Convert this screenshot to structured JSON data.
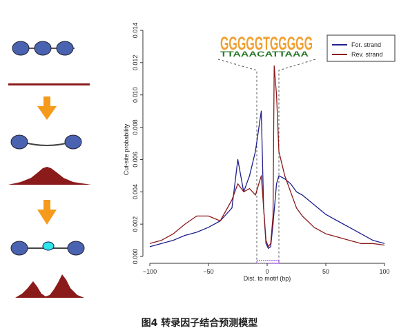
{
  "caption": "图4 转录因子结合预测模型",
  "chart_data": {
    "type": "line",
    "xlabel": "Dist. to motif (bp)",
    "ylabel": "Cut-site probability",
    "xlim": [
      -100,
      100
    ],
    "ylim": [
      0,
      0.014
    ],
    "x_ticks": [
      -100,
      -50,
      0,
      50,
      100
    ],
    "y_ticks": [
      0.0,
      0.002,
      0.004,
      0.006,
      0.008,
      0.01,
      0.012,
      0.014
    ],
    "grid": false,
    "legend_position": "top-right",
    "motif_logo": "GGGGGTGGGGG",
    "motif_logo_lower": "TTAAACATTAAA",
    "series": [
      {
        "name": "For. strand",
        "color": "#1f1f8f",
        "x": [
          -100,
          -90,
          -80,
          -70,
          -60,
          -50,
          -40,
          -30,
          -25,
          -20,
          -15,
          -10,
          -5,
          -3,
          -1,
          1,
          3,
          5,
          8,
          10,
          15,
          20,
          25,
          30,
          40,
          50,
          60,
          70,
          80,
          90,
          100
        ],
        "y": [
          0.0006,
          0.0008,
          0.001,
          0.0013,
          0.0015,
          0.0018,
          0.0022,
          0.003,
          0.006,
          0.004,
          0.005,
          0.0065,
          0.009,
          0.003,
          0.0008,
          0.0005,
          0.0006,
          0.002,
          0.0045,
          0.005,
          0.0048,
          0.0045,
          0.004,
          0.0038,
          0.0032,
          0.0026,
          0.0022,
          0.0018,
          0.0014,
          0.001,
          0.0008
        ]
      },
      {
        "name": "Rev. strand",
        "color": "#8b1a1a",
        "x": [
          -100,
          -90,
          -80,
          -70,
          -60,
          -50,
          -40,
          -30,
          -25,
          -20,
          -15,
          -10,
          -5,
          -3,
          -1,
          1,
          3,
          5,
          6,
          8,
          10,
          15,
          20,
          25,
          30,
          40,
          50,
          60,
          70,
          80,
          90,
          100
        ],
        "y": [
          0.0008,
          0.001,
          0.0014,
          0.002,
          0.0025,
          0.0025,
          0.0022,
          0.0035,
          0.0045,
          0.004,
          0.0042,
          0.0038,
          0.005,
          0.003,
          0.001,
          0.0006,
          0.0008,
          0.0025,
          0.0118,
          0.01,
          0.0065,
          0.005,
          0.004,
          0.003,
          0.0025,
          0.0018,
          0.0014,
          0.0012,
          0.001,
          0.0008,
          0.0008,
          0.0007
        ]
      }
    ]
  }
}
